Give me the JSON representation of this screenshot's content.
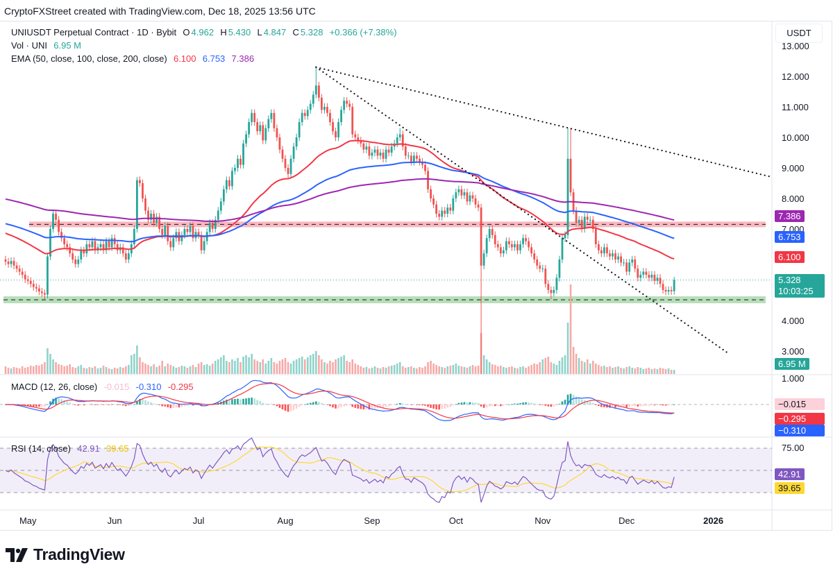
{
  "credit": "CryptoFXStreet created with TradingView.com, Dec 18, 2025 13:56 UTC",
  "legend": {
    "symbol": "UNIUSDT Perpetual Contract · 1D · Bybit",
    "o_label": "O",
    "open": "4.962",
    "h_label": "H",
    "high": "5.430",
    "l_label": "L",
    "low": "4.847",
    "c_label": "C",
    "close": "5.328",
    "change": "+0.366 (+7.38%)",
    "vol_label": "Vol · UNI",
    "vol_value": "6.95 M",
    "ema_label": "EMA (50, close, 100, close, 200, close)",
    "ema50": "6.100",
    "ema100": "6.753",
    "ema200": "7.386",
    "macd_label": "MACD (12, 26, close)",
    "macd_hist": "-0.015",
    "macd_line": "-0.310",
    "macd_signal": "-0.295",
    "rsi_label": "RSI (14, close)",
    "rsi_value": "42.91",
    "rsi_ma": "39.65"
  },
  "right_axis": {
    "unit": "USDT",
    "badges": {
      "ema200": "7.386",
      "ema100": "6.753",
      "ema50": "6.100",
      "last_price": "5.328",
      "countdown": "10:03:25",
      "volume": "6.95 M",
      "macd_hist": "−0.015",
      "macd_signal": "−0.295",
      "macd_line": "−0.310",
      "rsi": "42.91",
      "rsi_ma": "39.65"
    }
  },
  "colors": {
    "up": "#26a69a",
    "down": "#ef5350",
    "ema50": "#f23645",
    "ema100": "#2962ff",
    "ema200": "#9c27b0",
    "rsi": "#7e57c2",
    "rsi_ma": "#fdd835",
    "macd_signal": "#f23645",
    "macd_line": "#2962ff"
  },
  "branding": {
    "logo_text": "TradingView"
  },
  "chart_data": {
    "type": "candlestick",
    "interval": "1D",
    "first_date": "2025-04-23",
    "last_date": "2025-12-18",
    "price_ticks": [
      "13.000",
      "12.000",
      "11.000",
      "10.000",
      "9.000",
      "8.000",
      "7.000",
      "4.000",
      "3.000"
    ],
    "price_tick_values": [
      13,
      12,
      11,
      10,
      9,
      8,
      7,
      4,
      3
    ],
    "macd_ticks": [
      "1.000"
    ],
    "rsi_ticks": [
      "75.00"
    ],
    "time_ticks": [
      {
        "label": "May",
        "date": "2025-05-01"
      },
      {
        "label": "Jun",
        "date": "2025-06-01"
      },
      {
        "label": "Jul",
        "date": "2025-07-01"
      },
      {
        "label": "Aug",
        "date": "2025-08-01"
      },
      {
        "label": "Sep",
        "date": "2025-09-01"
      },
      {
        "label": "Oct",
        "date": "2025-10-01"
      },
      {
        "label": "Nov",
        "date": "2025-11-01"
      },
      {
        "label": "Dec",
        "date": "2025-12-01"
      },
      {
        "label": "2026",
        "date": "2026-01-01"
      }
    ],
    "close": [
      5.93,
      5.85,
      5.95,
      5.8,
      5.7,
      5.6,
      5.5,
      5.35,
      5.3,
      5.2,
      5.1,
      5.05,
      4.95,
      4.9,
      4.85,
      6.1,
      7.0,
      7.5,
      7.3,
      6.9,
      6.7,
      6.5,
      6.4,
      6.2,
      6.0,
      5.85,
      6.0,
      6.3,
      6.2,
      6.5,
      6.4,
      6.6,
      6.3,
      6.4,
      6.5,
      6.3,
      6.6,
      6.4,
      6.7,
      6.5,
      6.3,
      6.4,
      6.2,
      6.0,
      6.2,
      6.5,
      7.0,
      8.6,
      8.5,
      8.0,
      7.6,
      7.3,
      7.5,
      7.2,
      7.4,
      7.0,
      6.8,
      7.1,
      6.6,
      6.4,
      6.7,
      6.9,
      6.6,
      6.8,
      7.0,
      6.9,
      7.1,
      6.7,
      6.9,
      6.8,
      6.3,
      6.6,
      6.9,
      7.2,
      7.0,
      7.3,
      7.6,
      7.9,
      8.3,
      8.6,
      8.4,
      8.9,
      9.0,
      9.3,
      9.1,
      9.8,
      10.1,
      10.5,
      10.8,
      10.5,
      10.2,
      10.4,
      9.9,
      10.3,
      10.6,
      10.8,
      10.3,
      10.0,
      9.6,
      9.3,
      9.0,
      8.8,
      9.3,
      9.7,
      10.0,
      10.5,
      10.8,
      10.7,
      10.9,
      11.1,
      11.4,
      11.7,
      11.3,
      10.9,
      11.0,
      10.8,
      10.5,
      10.2,
      10.0,
      10.5,
      10.9,
      11.2,
      11.1,
      11.0,
      10.1,
      10.0,
      9.9,
      9.8,
      9.6,
      9.7,
      9.4,
      9.5,
      9.6,
      9.4,
      9.5,
      9.3,
      9.6,
      9.5,
      9.7,
      9.8,
      10.0,
      10.1,
      9.7,
      9.4,
      9.4,
      9.2,
      9.4,
      9.3,
      9.2,
      9.1,
      8.9,
      8.3,
      8.0,
      7.8,
      7.5,
      7.4,
      7.6,
      7.5,
      7.7,
      7.6,
      8.0,
      8.2,
      8.3,
      8.1,
      8.2,
      7.9,
      8.1,
      8.0,
      7.8,
      7.7,
      5.8,
      6.2,
      6.7,
      7.0,
      6.8,
      6.5,
      6.4,
      6.2,
      6.3,
      6.6,
      6.5,
      6.4,
      6.5,
      6.3,
      6.5,
      6.7,
      6.6,
      6.4,
      6.2,
      6.0,
      5.8,
      5.7,
      5.7,
      5.2,
      5.0,
      4.9,
      5.0,
      5.4,
      6.0,
      6.7,
      6.8,
      9.3,
      8.2,
      7.6,
      7.2,
      7.3,
      7.0,
      7.4,
      7.3,
      7.3,
      7.0,
      6.5,
      6.3,
      6.2,
      6.4,
      6.2,
      6.1,
      6.2,
      6.0,
      6.1,
      5.9,
      5.9,
      5.6,
      5.9,
      6.0,
      5.7,
      5.4,
      5.5,
      5.6,
      5.5,
      5.4,
      5.5,
      5.3,
      5.4,
      5.2,
      5.0,
      4.95,
      5.0,
      4.96,
      5.328
    ],
    "first_open": 6.0,
    "last_candle": {
      "open": 4.962,
      "high": 5.43,
      "low": 4.847,
      "close": 5.328
    },
    "extremes": {
      "111": {
        "high": 12.3
      },
      "170": {
        "low": 2.2
      },
      "195": {
        "low": 4.7
      },
      "14": {
        "low": 4.7
      },
      "201": {
        "high": 10.3
      },
      "202": {
        "high": 10.3
      },
      "47": {
        "high": 8.7
      },
      "141": {
        "high": 10.3
      }
    },
    "volume_millions": [
      12,
      10,
      9,
      11,
      10,
      9,
      12,
      10,
      11,
      13,
      12,
      14,
      13,
      15,
      18,
      38,
      30,
      22,
      18,
      15,
      14,
      12,
      13,
      15,
      11,
      10,
      12,
      14,
      10,
      9,
      11,
      10,
      12,
      9,
      10,
      13,
      11,
      9,
      8,
      10,
      9,
      11,
      10,
      12,
      14,
      28,
      30,
      42,
      25,
      18,
      16,
      14,
      12,
      15,
      11,
      13,
      20,
      12,
      16,
      14,
      12,
      10,
      11,
      13,
      12,
      10,
      12,
      14,
      11,
      16,
      18,
      14,
      15,
      13,
      16,
      20,
      22,
      25,
      28,
      20,
      18,
      22,
      20,
      24,
      18,
      26,
      28,
      25,
      30,
      22,
      20,
      18,
      22,
      16,
      20,
      24,
      18,
      16,
      20,
      22,
      24,
      18,
      16,
      20,
      22,
      24,
      26,
      22,
      25,
      28,
      30,
      34,
      28,
      22,
      18,
      16,
      20,
      18,
      22,
      24,
      26,
      28,
      20,
      18,
      22,
      16,
      14,
      12,
      10,
      11,
      9,
      10,
      12,
      10,
      9,
      11,
      10,
      12,
      13,
      14,
      16,
      18,
      12,
      10,
      11,
      12,
      10,
      9,
      11,
      10,
      12,
      18,
      20,
      16,
      14,
      12,
      11,
      10,
      12,
      13,
      14,
      16,
      13,
      12,
      11,
      10,
      12,
      14,
      12,
      13,
      60,
      28,
      22,
      18,
      15,
      14,
      12,
      13,
      11,
      10,
      11,
      12,
      10,
      9,
      11,
      12,
      10,
      12,
      14,
      16,
      15,
      18,
      22,
      24,
      26,
      18,
      16,
      14,
      20,
      25,
      28,
      75,
      130,
      40,
      30,
      24,
      20,
      18,
      22,
      16,
      20,
      16,
      14,
      12,
      13,
      11,
      12,
      10,
      11,
      12,
      10,
      9,
      11,
      12,
      10,
      9,
      11,
      10,
      8,
      9,
      10,
      8,
      9,
      8,
      10,
      9,
      8,
      9,
      7,
      6.95
    ],
    "support_zone": 4.68,
    "resistance_zone": 7.15,
    "trendlines": [
      {
        "from": {
          "date": "2025-08-12",
          "price": 12.3
        },
        "to": {
          "date": "2026-01-22",
          "price": 8.7
        }
      },
      {
        "from": {
          "date": "2025-08-12",
          "price": 12.3
        },
        "to": {
          "date": "2026-01-06",
          "price": 2.95
        }
      }
    ],
    "rsi_levels": [
      70,
      50,
      30
    ]
  }
}
